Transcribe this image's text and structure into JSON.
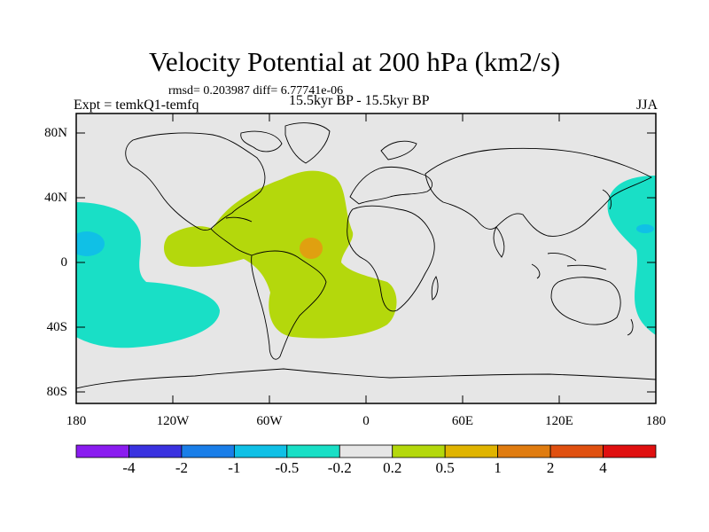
{
  "title": "Velocity Potential at 200 hPa (km2/s)",
  "stats": "rmsd= 0.203987 diff= 6.77741e-06",
  "experiment": "Expt = temkQ1-temfq",
  "period": "15.5kyr BP - 15.5kyr BP",
  "season": "JJA",
  "lat_labels": [
    "80N",
    "40N",
    "0",
    "40S",
    "80S"
  ],
  "lon_labels": [
    "180",
    "120W",
    "60W",
    "0",
    "60E",
    "120E",
    "180"
  ],
  "colorbar": {
    "labels": [
      "-4",
      "-2",
      "-1",
      "-0.5",
      "-0.2",
      "0.2",
      "0.5",
      "1",
      "2",
      "4"
    ],
    "colors": [
      "#8a1cf0",
      "#3a32e0",
      "#1a7ee8",
      "#10c0e6",
      "#19dfc6",
      "#e6e6e6",
      "#b4d80c",
      "#e0b400",
      "#e07c10",
      "#e05010",
      "#e01010"
    ]
  },
  "colors": {
    "ocean_land_bg": "#e6e6e6",
    "positive_fill": "#b4d80c",
    "negative_fill": "#19dfc6",
    "orange_fill": "#e0a010",
    "blue_fill": "#10c0e6"
  }
}
